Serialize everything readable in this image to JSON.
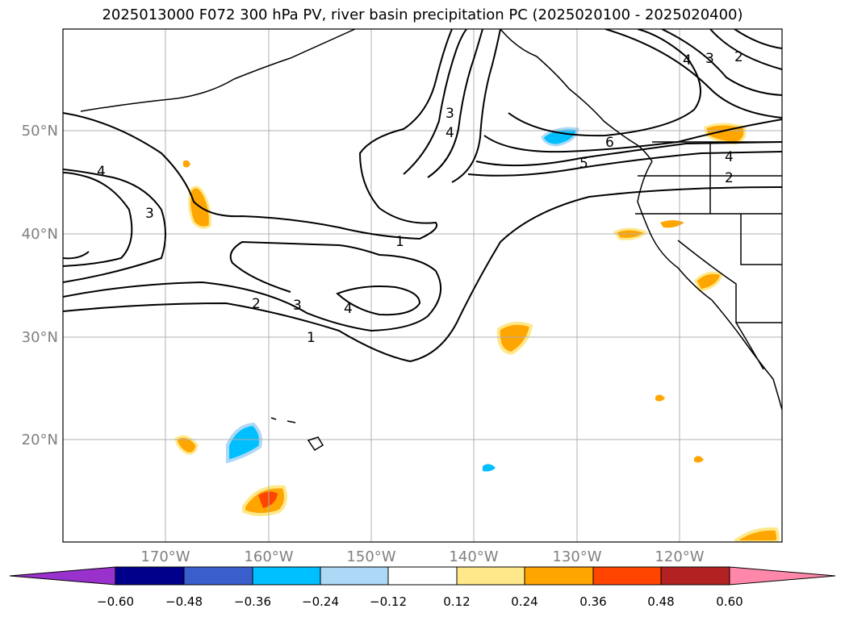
{
  "title": "2025013000 F072 300 hPa PV, river basin precipitation PC (2025020100 - 2025020400)",
  "latitude_labels": [
    "50°N",
    "40°N",
    "30°N",
    "20°N"
  ],
  "longitude_labels": [
    "170°W",
    "160°W",
    "150°W",
    "140°W",
    "130°W",
    "120°W"
  ],
  "contour_labels": [
    "1",
    "1",
    "2",
    "2",
    "3",
    "3",
    "3",
    "4",
    "4",
    "4",
    "4",
    "5",
    "6",
    "3",
    "2",
    "4"
  ],
  "colorbar": {
    "ticks": [
      "−0.60",
      "−0.48",
      "−0.36",
      "−0.24",
      "−0.12",
      "0.12",
      "0.24",
      "0.36",
      "0.48",
      "0.60"
    ],
    "colors": [
      "#9932cc",
      "#00008b",
      "#3a5fcd",
      "#00bfff",
      "#add8f6",
      "#ffffff",
      "#ffe88a",
      "#ffa500",
      "#ff4500",
      "#b22222",
      "#ff88aa",
      "#ff88aa"
    ]
  }
}
